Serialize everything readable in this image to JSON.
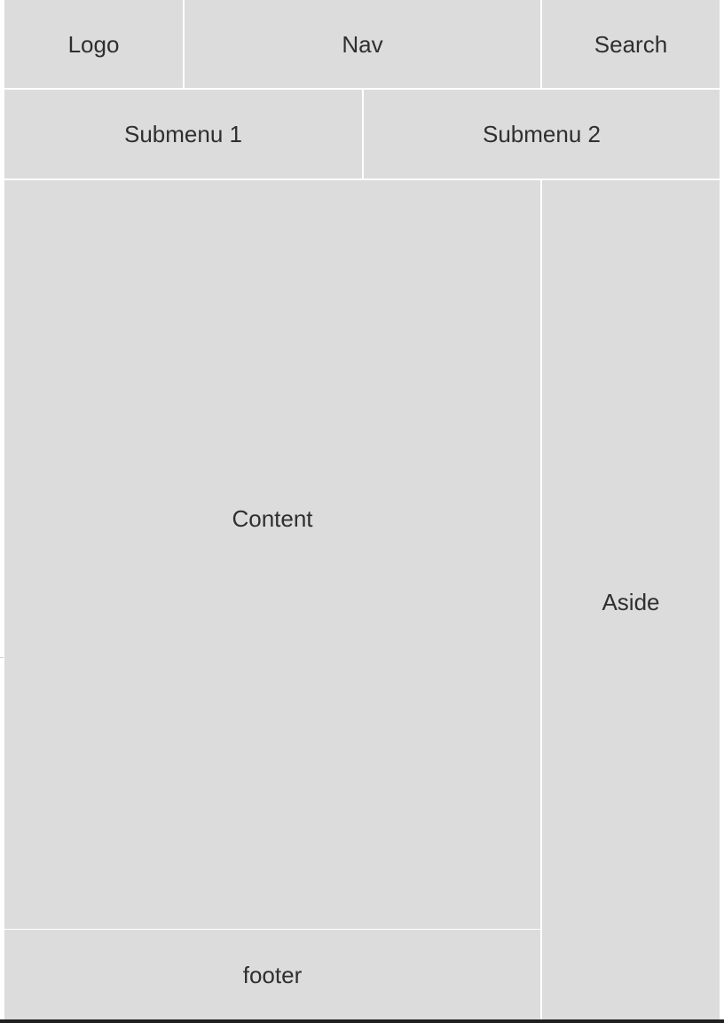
{
  "layout": {
    "header": {
      "logo": "Logo",
      "nav": "Nav",
      "search": "Search"
    },
    "submenu": {
      "items": [
        "Submenu 1",
        "Submenu 2"
      ]
    },
    "main": {
      "content": "Content",
      "aside": "Aside",
      "footer": "footer"
    }
  }
}
